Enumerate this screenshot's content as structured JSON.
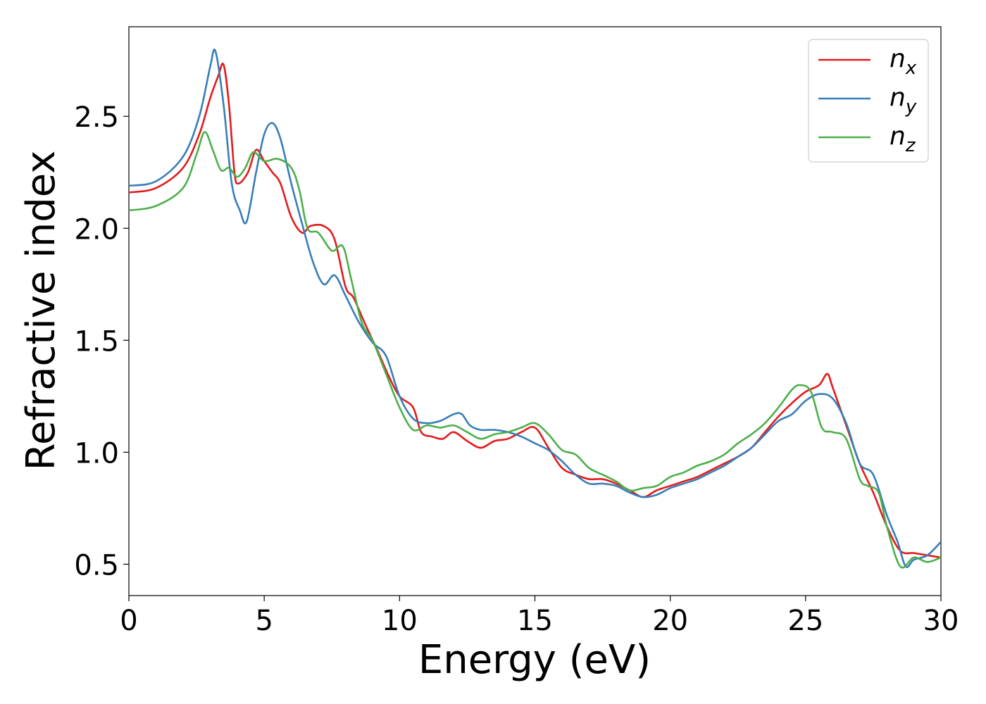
{
  "chart_data": {
    "type": "line",
    "xlabel": "Energy (eV)",
    "ylabel": "Refractive index",
    "xlim": [
      0,
      30
    ],
    "ylim": [
      0.36,
      2.9
    ],
    "x_ticks": [
      0,
      5,
      10,
      15,
      20,
      25,
      30
    ],
    "x_tick_labels": [
      "0",
      "5",
      "10",
      "15",
      "20",
      "25",
      "30"
    ],
    "y_ticks": [
      0.5,
      1.0,
      1.5,
      2.0,
      2.5
    ],
    "y_tick_labels": [
      "0.5",
      "1.0",
      "1.5",
      "2.0",
      "2.5"
    ],
    "grid": false,
    "legend_position": "top-right",
    "series": [
      {
        "name": "n_x",
        "label_main": "n",
        "label_sub": "x",
        "color": "#e41a1c",
        "points": [
          [
            0,
            2.16
          ],
          [
            1,
            2.18
          ],
          [
            2,
            2.27
          ],
          [
            2.6,
            2.42
          ],
          [
            3,
            2.58
          ],
          [
            3.3,
            2.68
          ],
          [
            3.5,
            2.73
          ],
          [
            3.7,
            2.55
          ],
          [
            3.9,
            2.25
          ],
          [
            4.05,
            2.2
          ],
          [
            4.4,
            2.25
          ],
          [
            4.7,
            2.35
          ],
          [
            5,
            2.3
          ],
          [
            5.3,
            2.25
          ],
          [
            5.6,
            2.2
          ],
          [
            6,
            2.05
          ],
          [
            6.4,
            1.98
          ],
          [
            6.7,
            2.01
          ],
          [
            7.2,
            2.01
          ],
          [
            7.6,
            1.95
          ],
          [
            8,
            1.74
          ],
          [
            8.3,
            1.69
          ],
          [
            8.7,
            1.58
          ],
          [
            9.2,
            1.45
          ],
          [
            9.6,
            1.34
          ],
          [
            10,
            1.25
          ],
          [
            10.5,
            1.2
          ],
          [
            10.8,
            1.09
          ],
          [
            11.2,
            1.07
          ],
          [
            11.6,
            1.06
          ],
          [
            12,
            1.09
          ],
          [
            12.5,
            1.05
          ],
          [
            13,
            1.02
          ],
          [
            13.5,
            1.05
          ],
          [
            14,
            1.06
          ],
          [
            14.5,
            1.09
          ],
          [
            15,
            1.11
          ],
          [
            15.5,
            1.02
          ],
          [
            16,
            0.93
          ],
          [
            16.5,
            0.9
          ],
          [
            17,
            0.88
          ],
          [
            17.5,
            0.88
          ],
          [
            18,
            0.86
          ],
          [
            18.5,
            0.83
          ],
          [
            19,
            0.8
          ],
          [
            19.5,
            0.83
          ],
          [
            20,
            0.85
          ],
          [
            20.5,
            0.87
          ],
          [
            21,
            0.89
          ],
          [
            21.5,
            0.92
          ],
          [
            22,
            0.95
          ],
          [
            22.5,
            0.98
          ],
          [
            23,
            1.02
          ],
          [
            23.5,
            1.09
          ],
          [
            24,
            1.16
          ],
          [
            24.5,
            1.22
          ],
          [
            25,
            1.27
          ],
          [
            25.5,
            1.3
          ],
          [
            25.8,
            1.35
          ],
          [
            26,
            1.29
          ],
          [
            26.5,
            1.12
          ],
          [
            27,
            0.95
          ],
          [
            27.5,
            0.82
          ],
          [
            28,
            0.67
          ],
          [
            28.5,
            0.56
          ],
          [
            29,
            0.55
          ],
          [
            29.5,
            0.54
          ],
          [
            30,
            0.53
          ]
        ]
      },
      {
        "name": "n_y",
        "label_main": "n",
        "label_sub": "y",
        "color": "#377eb8",
        "points": [
          [
            0,
            2.19
          ],
          [
            1,
            2.21
          ],
          [
            2,
            2.32
          ],
          [
            2.6,
            2.5
          ],
          [
            3,
            2.72
          ],
          [
            3.2,
            2.79
          ],
          [
            3.5,
            2.55
          ],
          [
            3.8,
            2.2
          ],
          [
            4.1,
            2.08
          ],
          [
            4.35,
            2.03
          ],
          [
            4.7,
            2.25
          ],
          [
            5,
            2.42
          ],
          [
            5.3,
            2.47
          ],
          [
            5.6,
            2.4
          ],
          [
            6,
            2.2
          ],
          [
            6.4,
            2.02
          ],
          [
            6.8,
            1.85
          ],
          [
            7.2,
            1.75
          ],
          [
            7.6,
            1.79
          ],
          [
            8,
            1.7
          ],
          [
            8.5,
            1.58
          ],
          [
            9,
            1.49
          ],
          [
            9.5,
            1.43
          ],
          [
            10,
            1.25
          ],
          [
            10.5,
            1.15
          ],
          [
            11,
            1.13
          ],
          [
            11.5,
            1.14
          ],
          [
            12,
            1.17
          ],
          [
            12.3,
            1.17
          ],
          [
            12.6,
            1.12
          ],
          [
            13,
            1.1
          ],
          [
            13.5,
            1.1
          ],
          [
            14,
            1.09
          ],
          [
            14.5,
            1.07
          ],
          [
            15,
            1.04
          ],
          [
            15.5,
            1.01
          ],
          [
            16,
            0.96
          ],
          [
            16.5,
            0.9
          ],
          [
            17,
            0.86
          ],
          [
            17.5,
            0.86
          ],
          [
            18,
            0.85
          ],
          [
            18.5,
            0.82
          ],
          [
            19,
            0.8
          ],
          [
            19.5,
            0.81
          ],
          [
            20,
            0.84
          ],
          [
            20.5,
            0.86
          ],
          [
            21,
            0.88
          ],
          [
            21.5,
            0.91
          ],
          [
            22,
            0.94
          ],
          [
            22.5,
            0.98
          ],
          [
            23,
            1.02
          ],
          [
            23.5,
            1.08
          ],
          [
            24,
            1.14
          ],
          [
            24.5,
            1.17
          ],
          [
            25,
            1.23
          ],
          [
            25.5,
            1.26
          ],
          [
            26,
            1.24
          ],
          [
            26.5,
            1.13
          ],
          [
            27,
            0.95
          ],
          [
            27.5,
            0.9
          ],
          [
            28,
            0.72
          ],
          [
            28.4,
            0.6
          ],
          [
            28.7,
            0.49
          ],
          [
            29,
            0.52
          ],
          [
            29.5,
            0.54
          ],
          [
            30,
            0.6
          ]
        ]
      },
      {
        "name": "n_z",
        "label_main": "n",
        "label_sub": "z",
        "color": "#4daf4a",
        "points": [
          [
            0,
            2.08
          ],
          [
            1,
            2.1
          ],
          [
            2,
            2.18
          ],
          [
            2.5,
            2.33
          ],
          [
            2.8,
            2.43
          ],
          [
            3.1,
            2.35
          ],
          [
            3.4,
            2.26
          ],
          [
            3.7,
            2.27
          ],
          [
            4,
            2.23
          ],
          [
            4.3,
            2.27
          ],
          [
            4.6,
            2.34
          ],
          [
            5,
            2.3
          ],
          [
            5.5,
            2.31
          ],
          [
            6,
            2.27
          ],
          [
            6.3,
            2.17
          ],
          [
            6.6,
            2
          ],
          [
            7,
            1.98
          ],
          [
            7.5,
            1.9
          ],
          [
            7.9,
            1.92
          ],
          [
            8.2,
            1.78
          ],
          [
            8.6,
            1.58
          ],
          [
            9,
            1.5
          ],
          [
            9.5,
            1.35
          ],
          [
            10,
            1.2
          ],
          [
            10.5,
            1.1
          ],
          [
            11,
            1.12
          ],
          [
            11.5,
            1.11
          ],
          [
            12,
            1.12
          ],
          [
            12.5,
            1.09
          ],
          [
            13,
            1.06
          ],
          [
            13.5,
            1.08
          ],
          [
            14,
            1.09
          ],
          [
            14.5,
            1.11
          ],
          [
            15,
            1.13
          ],
          [
            15.5,
            1.08
          ],
          [
            16,
            1.01
          ],
          [
            16.5,
            0.99
          ],
          [
            17,
            0.93
          ],
          [
            17.5,
            0.9
          ],
          [
            18,
            0.87
          ],
          [
            18.5,
            0.83
          ],
          [
            19,
            0.84
          ],
          [
            19.5,
            0.85
          ],
          [
            20,
            0.89
          ],
          [
            20.5,
            0.91
          ],
          [
            21,
            0.94
          ],
          [
            21.5,
            0.96
          ],
          [
            22,
            0.99
          ],
          [
            22.5,
            1.04
          ],
          [
            23,
            1.08
          ],
          [
            23.5,
            1.13
          ],
          [
            24,
            1.2
          ],
          [
            24.5,
            1.28
          ],
          [
            24.8,
            1.3
          ],
          [
            25.2,
            1.27
          ],
          [
            25.6,
            1.11
          ],
          [
            26,
            1.09
          ],
          [
            26.5,
            1.06
          ],
          [
            27,
            0.88
          ],
          [
            27.3,
            0.85
          ],
          [
            27.7,
            0.82
          ],
          [
            28,
            0.67
          ],
          [
            28.5,
            0.49
          ],
          [
            29,
            0.53
          ],
          [
            29.5,
            0.51
          ],
          [
            30,
            0.53
          ]
        ]
      }
    ]
  }
}
